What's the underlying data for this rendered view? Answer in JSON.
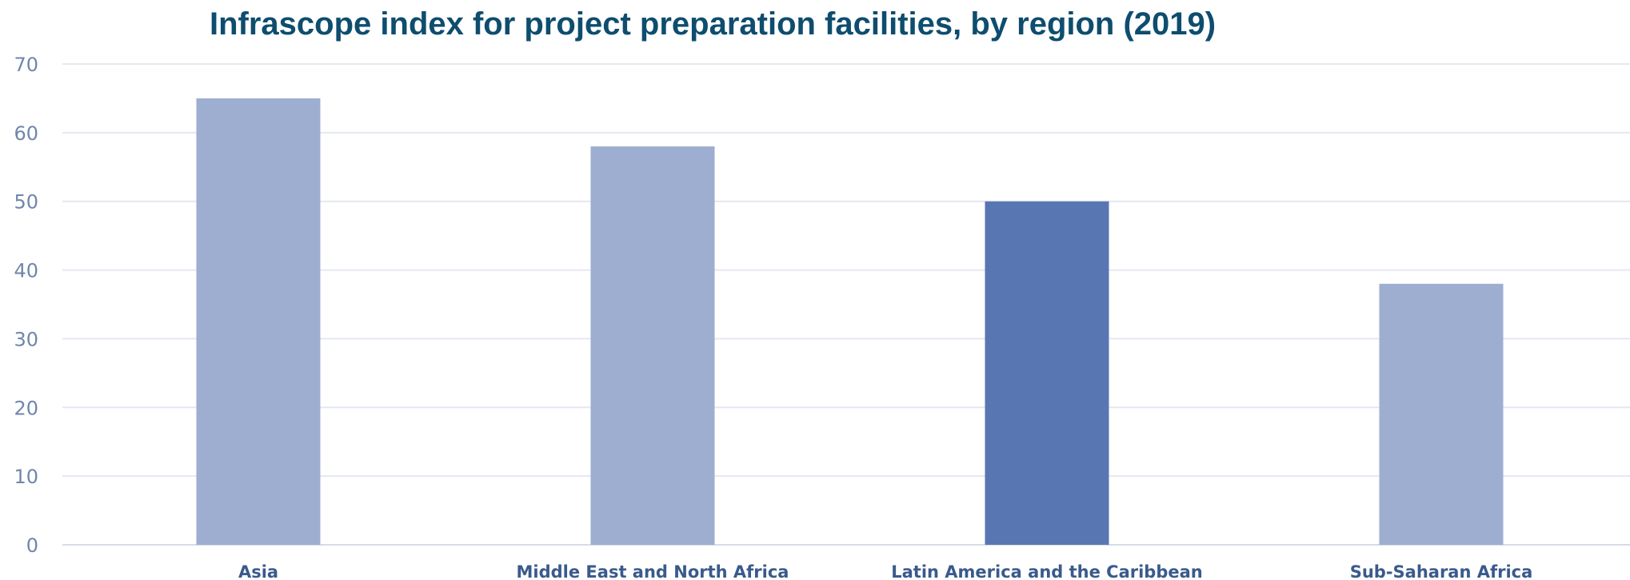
{
  "chart_data": {
    "type": "bar",
    "title": "Infrascope index for project preparation facilities, by region (2019)",
    "categories": [
      "Asia",
      "Middle East and North Africa",
      "Latin America and the Caribbean",
      "Sub-Saharan Africa"
    ],
    "values": [
      65,
      58,
      50,
      38
    ],
    "highlighted_category": "Latin America and the Caribbean",
    "ylim": [
      0,
      70
    ],
    "yticks": [
      0,
      10,
      20,
      30,
      40,
      50,
      60,
      70
    ],
    "xlabel": "",
    "ylabel": "",
    "grid": true,
    "legend": "none",
    "colors": {
      "bar": "#9daed1",
      "highlight": "#5877b2",
      "title": "#0e4d6e"
    }
  }
}
